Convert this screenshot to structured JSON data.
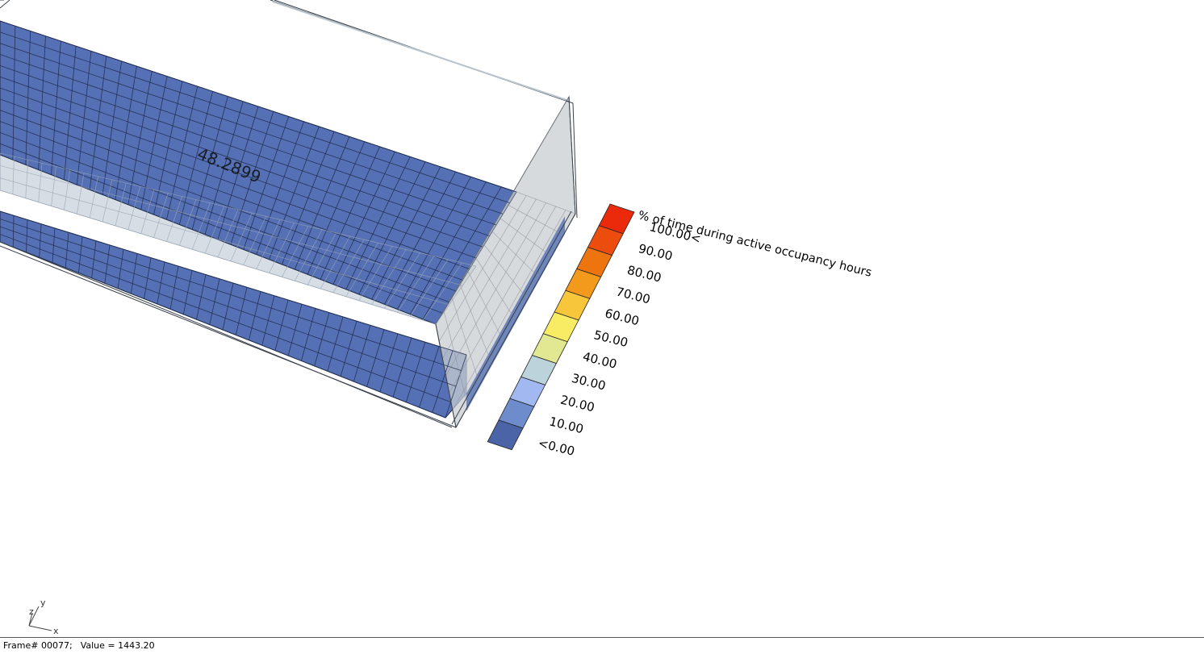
{
  "viewport": {
    "grid_value_label": "48.2899",
    "legend": {
      "title": "% of time during active occupancy hours",
      "labels": [
        "100.00<",
        "90.00",
        "80.00",
        "70.00",
        "60.00",
        "50.00",
        "40.00",
        "30.00",
        "20.00",
        "10.00",
        "<0.00"
      ],
      "colors": [
        "#ea2a0b",
        "#ec4d0e",
        "#ee7410",
        "#f39a1c",
        "#f7c63a",
        "#f7ec63",
        "#e2e792",
        "#bcd3dc",
        "#a1b8f0",
        "#6e8ccc",
        "#4a64a7"
      ]
    },
    "axes": {
      "x": "x",
      "y": "y",
      "z": "z"
    },
    "colors": {
      "grid_fill": "#5570b4",
      "grid_line": "#1f2d4e",
      "glass": "#c9ced2",
      "walkway": "#d6dde5"
    }
  },
  "status": {
    "frame": "Frame# 00077;",
    "value": "Value = 1443.20"
  }
}
